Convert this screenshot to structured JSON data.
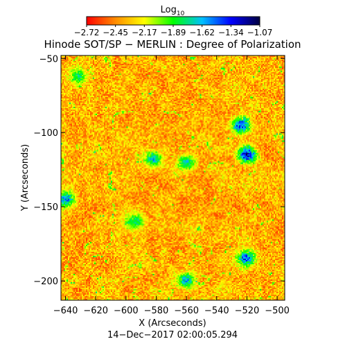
{
  "colorbar": {
    "label_main": "Log",
    "label_sub": "10",
    "tick_labels": [
      "−2.72",
      "−2.45",
      "−2.17",
      "−1.89",
      "−1.62",
      "−1.34",
      "−1.07"
    ],
    "range": [
      -2.72,
      -1.07
    ],
    "colormap": [
      "#ff0000",
      "#ff8c00",
      "#ffff00",
      "#00ff00",
      "#00c0ff",
      "#0000ff",
      "#000040"
    ]
  },
  "chart_data": {
    "type": "heatmap",
    "title": "Hinode SOT/SP − MERLIN : Degree of Polarization",
    "xlabel": "X (Arcseconds)",
    "ylabel": "Y (Arcseconds)",
    "xlim": [
      -643,
      -495
    ],
    "ylim": [
      -213,
      -48
    ],
    "x_ticks": [
      -640,
      -620,
      -600,
      -580,
      -560,
      -540,
      -520,
      -500
    ],
    "x_tick_labels": [
      "−640",
      "−620",
      "−600",
      "−580",
      "−560",
      "−540",
      "−520",
      "−500"
    ],
    "y_ticks": [
      -50,
      -100,
      -150,
      -200
    ],
    "y_tick_labels": [
      "−50",
      "−100",
      "−150",
      "−200"
    ],
    "value_range": [
      -2.72,
      -1.07
    ],
    "grid": false,
    "description_regions": [
      {
        "x": -524,
        "y": -95,
        "level": -1.2
      },
      {
        "x": -520,
        "y": -115,
        "level": -1.15
      },
      {
        "x": -582,
        "y": -118,
        "level": -1.55
      },
      {
        "x": -560,
        "y": -120,
        "level": -1.6
      },
      {
        "x": -640,
        "y": -145,
        "level": -1.4
      },
      {
        "x": -632,
        "y": -62,
        "level": -1.7
      },
      {
        "x": -520,
        "y": -185,
        "level": -1.3
      },
      {
        "x": -560,
        "y": -200,
        "level": -1.5
      },
      {
        "x": -594,
        "y": -160,
        "level": -1.65
      }
    ]
  },
  "footer": {
    "timestamp": "14−Dec−2017 02:00:05.294"
  }
}
